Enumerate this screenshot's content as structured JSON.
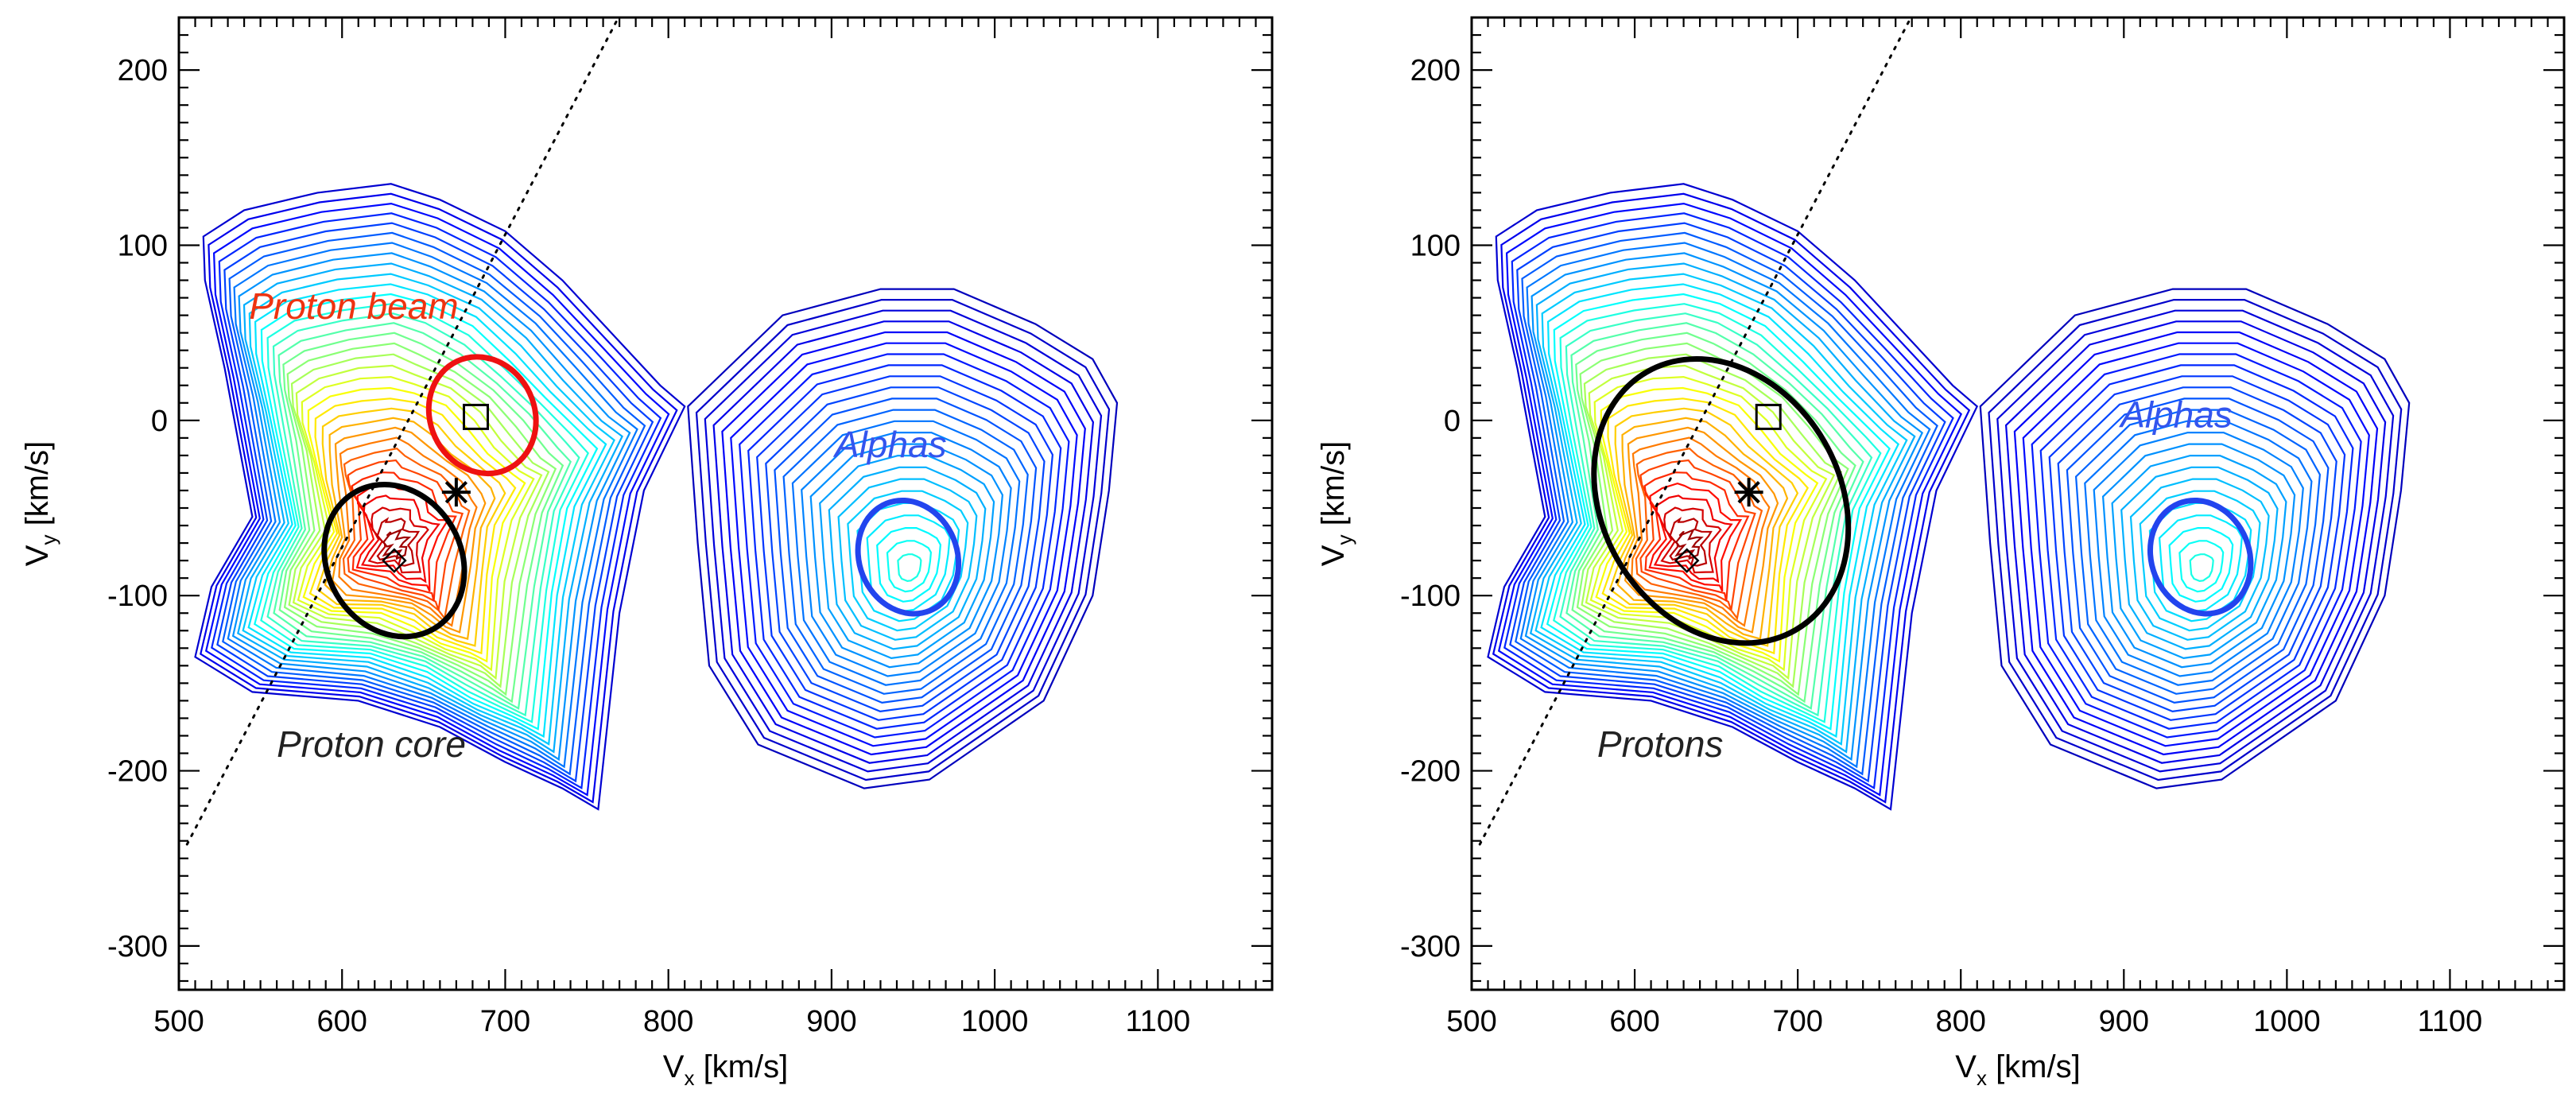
{
  "chart_data": [
    {
      "type": "contour",
      "panel": "left",
      "xlabel": "V",
      "xlabel_sub": "x",
      "xlabel_unit": " [km/s]",
      "ylabel": "V",
      "ylabel_sub": "y",
      "ylabel_unit": " [km/s]",
      "xlim": [
        500,
        1170
      ],
      "ylim": [
        -325,
        230
      ],
      "xticks": [
        500,
        600,
        700,
        800,
        900,
        1000,
        1100
      ],
      "yticks": [
        200,
        100,
        0,
        -100,
        -200,
        -300
      ],
      "dotted_line": {
        "p1": [
          505,
          -242
        ],
        "p2": [
          775,
          240
        ]
      },
      "markers": [
        {
          "kind": "square",
          "x": 682,
          "y": 2
        },
        {
          "kind": "asterisk",
          "x": 670,
          "y": -41
        },
        {
          "kind": "diamond",
          "x": 632,
          "y": -80
        }
      ],
      "ellipses": [
        {
          "name": "proton-beam",
          "cx": 686,
          "cy": 3,
          "rx": 32,
          "ry": 34,
          "angle": -25,
          "color": "#ee1111"
        },
        {
          "name": "proton-core",
          "cx": 632,
          "cy": -80,
          "rx": 41,
          "ry": 45,
          "angle": -30,
          "color": "#000000"
        },
        {
          "name": "alphas",
          "cx": 947,
          "cy": -78,
          "rx": 30,
          "ry": 33,
          "angle": -22,
          "color": "#2244ee"
        }
      ],
      "labels": [
        {
          "text": "Proton beam",
          "x": 543,
          "y": 58,
          "color": "#ee3311"
        },
        {
          "text": "Proton core",
          "x": 560,
          "y": -192,
          "color": "#222222"
        },
        {
          "text": "Alphas",
          "x": 902,
          "y": -21,
          "color": "#3355ee"
        }
      ]
    },
    {
      "type": "contour",
      "panel": "right",
      "xlabel": "V",
      "xlabel_sub": "x",
      "xlabel_unit": " [km/s]",
      "ylabel": "V",
      "ylabel_sub": "y",
      "ylabel_unit": " [km/s]",
      "xlim": [
        500,
        1170
      ],
      "ylim": [
        -325,
        230
      ],
      "xticks": [
        500,
        600,
        700,
        800,
        900,
        1000,
        1100
      ],
      "yticks": [
        200,
        100,
        0,
        -100,
        -200,
        -300
      ],
      "dotted_line": {
        "p1": [
          505,
          -242
        ],
        "p2": [
          775,
          240
        ]
      },
      "markers": [
        {
          "kind": "square",
          "x": 682,
          "y": 2
        },
        {
          "kind": "asterisk",
          "x": 670,
          "y": -41
        },
        {
          "kind": "diamond",
          "x": 632,
          "y": -80
        }
      ],
      "ellipses": [
        {
          "name": "protons",
          "cx": 653,
          "cy": -46,
          "rx": 73,
          "ry": 85,
          "angle": -30,
          "color": "#000000"
        },
        {
          "name": "alphas",
          "cx": 947,
          "cy": -78,
          "rx": 30,
          "ry": 33,
          "angle": -22,
          "color": "#2244ee"
        }
      ],
      "labels": [
        {
          "text": "Protons",
          "x": 577,
          "y": -192,
          "color": "#222222"
        },
        {
          "text": "Alphas",
          "x": 898,
          "y": -4,
          "color": "#3355ee"
        }
      ]
    }
  ]
}
